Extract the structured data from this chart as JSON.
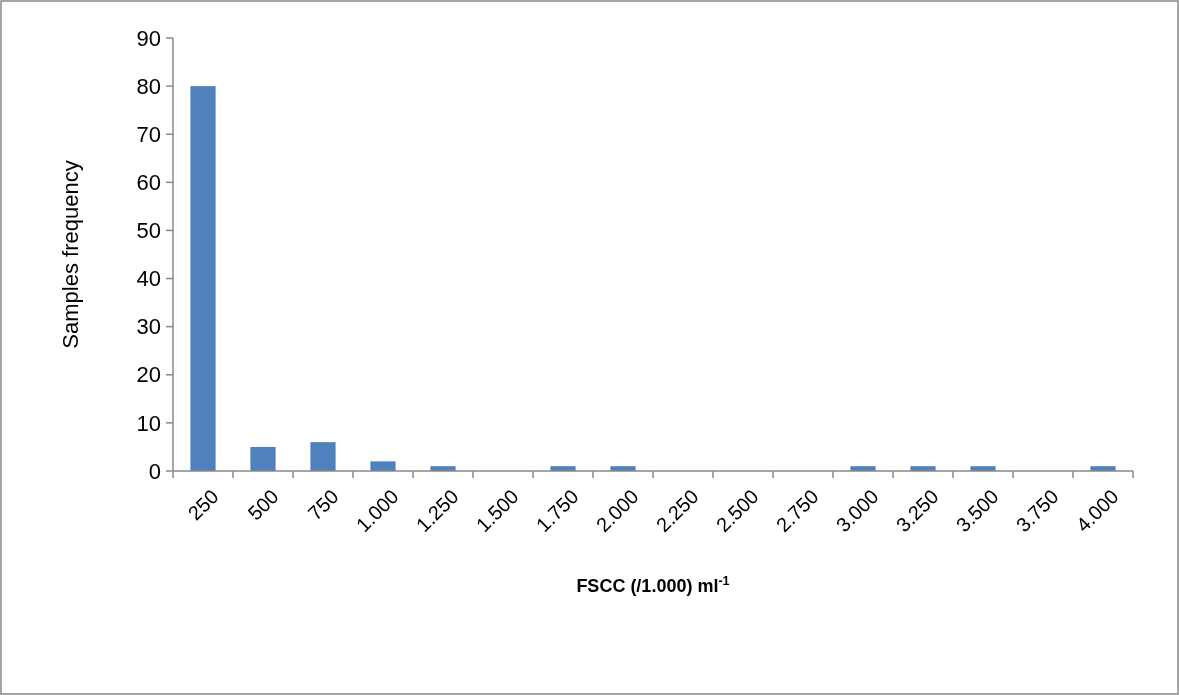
{
  "chart_data": {
    "type": "bar",
    "xlabel": "FSCC (/1.000) ml$^{-1}$",
    "ylabel": "Samples frequency",
    "categories": [
      "250",
      "500",
      "750",
      "1.000",
      "1.250",
      "1.500",
      "1.750",
      "2.000",
      "2.250",
      "2.500",
      "2.750",
      "3.000",
      "3.250",
      "3.500",
      "3.750",
      "4.000"
    ],
    "values": [
      80,
      5,
      6,
      2,
      1,
      0,
      1,
      1,
      0,
      0,
      0,
      1,
      1,
      1,
      0,
      1
    ],
    "color": "#4f81bd",
    "ylim": [
      0,
      90
    ],
    "yticks": [
      0,
      10,
      20,
      30,
      40,
      50,
      60,
      70,
      80,
      90
    ],
    "grid": false
  }
}
